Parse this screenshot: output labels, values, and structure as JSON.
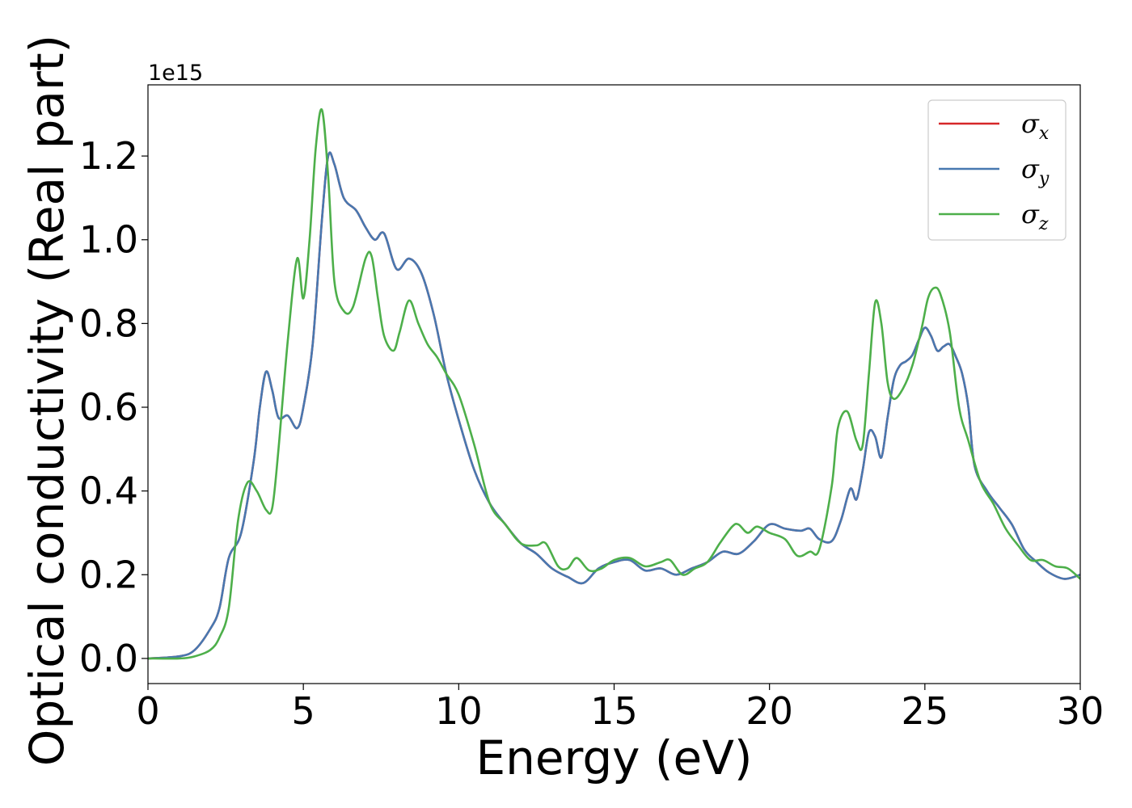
{
  "chart_data": {
    "type": "line",
    "title": "",
    "xlabel": "Energy (eV)",
    "ylabel": "Optical conductivity (Real part)",
    "y_offset_label": "1e15",
    "xlim": [
      0,
      30
    ],
    "ylim": [
      -0.06,
      1.37
    ],
    "x_ticks": [
      0,
      5,
      10,
      15,
      20,
      25,
      30
    ],
    "x_tick_labels": [
      "0",
      "5",
      "10",
      "15",
      "20",
      "25",
      "30"
    ],
    "y_ticks": [
      0.0,
      0.2,
      0.4,
      0.6,
      0.8,
      1.0,
      1.2
    ],
    "y_tick_labels": [
      "0.0",
      "0.2",
      "0.4",
      "0.6",
      "0.8",
      "1.0",
      "1.2"
    ],
    "grid": false,
    "legend_position": "top-right",
    "series": [
      {
        "name": "σ",
        "subscript": "x",
        "color": "#d62728",
        "x": [
          0,
          1.0,
          1.5,
          2.0,
          2.3,
          2.6,
          3.0,
          3.4,
          3.6,
          3.8,
          4.0,
          4.2,
          4.5,
          4.8,
          5.0,
          5.3,
          5.6,
          5.8,
          6.0,
          6.3,
          6.7,
          7.0,
          7.3,
          7.6,
          8.0,
          8.4,
          8.8,
          9.2,
          9.6,
          10.0,
          10.5,
          11.0,
          11.5,
          12.0,
          12.5,
          13.0,
          13.5,
          14.0,
          14.5,
          15.0,
          15.5,
          16.0,
          16.5,
          17.0,
          17.5,
          18.0,
          18.5,
          19.0,
          19.5,
          20.0,
          20.5,
          21.0,
          21.3,
          21.6,
          22.0,
          22.3,
          22.6,
          22.8,
          23.0,
          23.2,
          23.4,
          23.6,
          23.8,
          24.0,
          24.2,
          24.4,
          24.6,
          24.8,
          25.0,
          25.2,
          25.4,
          25.6,
          25.8,
          26.0,
          26.2,
          26.4,
          26.6,
          27.0,
          27.4,
          27.8,
          28.2,
          28.6,
          29.0,
          29.5,
          30.0
        ],
        "y": [
          0.0,
          0.005,
          0.02,
          0.07,
          0.12,
          0.24,
          0.3,
          0.47,
          0.6,
          0.685,
          0.64,
          0.575,
          0.58,
          0.55,
          0.6,
          0.75,
          1.05,
          1.2,
          1.18,
          1.1,
          1.07,
          1.03,
          1.0,
          1.015,
          0.93,
          0.955,
          0.92,
          0.82,
          0.68,
          0.57,
          0.45,
          0.37,
          0.32,
          0.275,
          0.25,
          0.215,
          0.195,
          0.18,
          0.215,
          0.23,
          0.235,
          0.21,
          0.215,
          0.2,
          0.215,
          0.23,
          0.255,
          0.25,
          0.28,
          0.32,
          0.31,
          0.305,
          0.31,
          0.285,
          0.28,
          0.33,
          0.405,
          0.38,
          0.45,
          0.54,
          0.53,
          0.48,
          0.575,
          0.665,
          0.7,
          0.71,
          0.725,
          0.76,
          0.79,
          0.77,
          0.735,
          0.745,
          0.75,
          0.72,
          0.68,
          0.6,
          0.46,
          0.4,
          0.36,
          0.32,
          0.26,
          0.23,
          0.205,
          0.19,
          0.2
        ]
      },
      {
        "name": "σ",
        "subscript": "y",
        "color": "#4878b0",
        "x": [
          0,
          1.0,
          1.5,
          2.0,
          2.3,
          2.6,
          3.0,
          3.4,
          3.6,
          3.8,
          4.0,
          4.2,
          4.5,
          4.8,
          5.0,
          5.3,
          5.6,
          5.8,
          6.0,
          6.3,
          6.7,
          7.0,
          7.3,
          7.6,
          8.0,
          8.4,
          8.8,
          9.2,
          9.6,
          10.0,
          10.5,
          11.0,
          11.5,
          12.0,
          12.5,
          13.0,
          13.5,
          14.0,
          14.5,
          15.0,
          15.5,
          16.0,
          16.5,
          17.0,
          17.5,
          18.0,
          18.5,
          19.0,
          19.5,
          20.0,
          20.5,
          21.0,
          21.3,
          21.6,
          22.0,
          22.3,
          22.6,
          22.8,
          23.0,
          23.2,
          23.4,
          23.6,
          23.8,
          24.0,
          24.2,
          24.4,
          24.6,
          24.8,
          25.0,
          25.2,
          25.4,
          25.6,
          25.8,
          26.0,
          26.2,
          26.4,
          26.6,
          27.0,
          27.4,
          27.8,
          28.2,
          28.6,
          29.0,
          29.5,
          30.0
        ],
        "y": [
          0.0,
          0.005,
          0.02,
          0.07,
          0.12,
          0.24,
          0.3,
          0.47,
          0.6,
          0.685,
          0.64,
          0.575,
          0.58,
          0.55,
          0.6,
          0.75,
          1.05,
          1.2,
          1.18,
          1.1,
          1.07,
          1.03,
          1.0,
          1.015,
          0.93,
          0.955,
          0.92,
          0.82,
          0.68,
          0.57,
          0.45,
          0.37,
          0.32,
          0.275,
          0.25,
          0.215,
          0.195,
          0.18,
          0.215,
          0.23,
          0.235,
          0.21,
          0.215,
          0.2,
          0.215,
          0.23,
          0.255,
          0.25,
          0.28,
          0.32,
          0.31,
          0.305,
          0.31,
          0.285,
          0.28,
          0.33,
          0.405,
          0.38,
          0.45,
          0.54,
          0.53,
          0.48,
          0.575,
          0.665,
          0.7,
          0.71,
          0.725,
          0.76,
          0.79,
          0.77,
          0.735,
          0.745,
          0.75,
          0.72,
          0.68,
          0.6,
          0.46,
          0.4,
          0.36,
          0.32,
          0.26,
          0.23,
          0.205,
          0.19,
          0.2
        ]
      },
      {
        "name": "σ",
        "subscript": "z",
        "color": "#4daf4a",
        "x": [
          0,
          1.0,
          1.5,
          2.0,
          2.3,
          2.6,
          2.9,
          3.2,
          3.5,
          3.8,
          4.0,
          4.2,
          4.5,
          4.8,
          5.0,
          5.2,
          5.4,
          5.6,
          5.8,
          6.0,
          6.3,
          6.6,
          7.0,
          7.2,
          7.4,
          7.6,
          7.9,
          8.1,
          8.4,
          8.7,
          9.0,
          9.3,
          9.6,
          10.0,
          10.5,
          11.0,
          11.5,
          12.0,
          12.5,
          12.8,
          13.2,
          13.5,
          13.8,
          14.2,
          14.6,
          15.0,
          15.5,
          16.0,
          16.5,
          16.8,
          17.2,
          17.6,
          18.0,
          18.4,
          18.8,
          19.0,
          19.3,
          19.6,
          20.0,
          20.5,
          20.9,
          21.3,
          21.6,
          22.0,
          22.2,
          22.5,
          22.8,
          23.0,
          23.2,
          23.4,
          23.6,
          23.8,
          24.0,
          24.3,
          24.6,
          24.9,
          25.1,
          25.3,
          25.5,
          25.8,
          26.1,
          26.4,
          26.8,
          27.2,
          27.6,
          28.0,
          28.4,
          28.8,
          29.2,
          29.6,
          30.0
        ],
        "y": [
          0.0,
          0.0,
          0.005,
          0.02,
          0.05,
          0.12,
          0.33,
          0.42,
          0.4,
          0.355,
          0.36,
          0.5,
          0.76,
          0.955,
          0.86,
          1.0,
          1.22,
          1.31,
          1.15,
          0.9,
          0.83,
          0.84,
          0.955,
          0.96,
          0.86,
          0.77,
          0.735,
          0.78,
          0.855,
          0.8,
          0.75,
          0.72,
          0.68,
          0.63,
          0.51,
          0.37,
          0.32,
          0.275,
          0.27,
          0.275,
          0.22,
          0.215,
          0.24,
          0.21,
          0.215,
          0.235,
          0.24,
          0.22,
          0.23,
          0.235,
          0.2,
          0.215,
          0.23,
          0.275,
          0.315,
          0.32,
          0.3,
          0.315,
          0.3,
          0.285,
          0.245,
          0.255,
          0.26,
          0.41,
          0.55,
          0.59,
          0.52,
          0.51,
          0.68,
          0.85,
          0.8,
          0.66,
          0.62,
          0.645,
          0.7,
          0.79,
          0.86,
          0.885,
          0.87,
          0.78,
          0.6,
          0.52,
          0.42,
          0.37,
          0.31,
          0.27,
          0.235,
          0.235,
          0.22,
          0.215,
          0.19
        ]
      }
    ]
  }
}
